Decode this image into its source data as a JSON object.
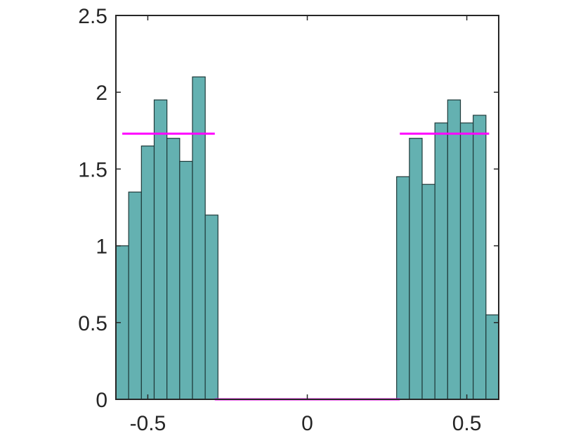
{
  "chart_data": {
    "type": "bar",
    "xlim": [
      -0.6,
      0.6
    ],
    "ylim": [
      0,
      2.5
    ],
    "xticks": [
      -0.5,
      0,
      0.5
    ],
    "xtick_labels": [
      "-0.5",
      "0",
      "0.5"
    ],
    "yticks": [
      0,
      0.5,
      1,
      1.5,
      2,
      2.5
    ],
    "ytick_labels": [
      "0",
      "0.5",
      "1",
      "1.5",
      "2",
      "2.5"
    ],
    "grid": false,
    "bin_width": 0.04,
    "bars": [
      {
        "x0": -0.6,
        "x1": -0.56,
        "value": 1.0
      },
      {
        "x0": -0.56,
        "x1": -0.52,
        "value": 1.35
      },
      {
        "x0": -0.52,
        "x1": -0.48,
        "value": 1.65
      },
      {
        "x0": -0.48,
        "x1": -0.44,
        "value": 1.95
      },
      {
        "x0": -0.44,
        "x1": -0.4,
        "value": 1.7
      },
      {
        "x0": -0.4,
        "x1": -0.36,
        "value": 1.55
      },
      {
        "x0": -0.36,
        "x1": -0.32,
        "value": 2.1
      },
      {
        "x0": -0.32,
        "x1": -0.28,
        "value": 1.2
      },
      {
        "x0": 0.28,
        "x1": 0.32,
        "value": 1.45
      },
      {
        "x0": 0.32,
        "x1": 0.36,
        "value": 1.7
      },
      {
        "x0": 0.36,
        "x1": 0.4,
        "value": 1.4
      },
      {
        "x0": 0.4,
        "x1": 0.44,
        "value": 1.8
      },
      {
        "x0": 0.44,
        "x1": 0.48,
        "value": 1.95
      },
      {
        "x0": 0.48,
        "x1": 0.52,
        "value": 1.8
      },
      {
        "x0": 0.52,
        "x1": 0.56,
        "value": 1.85
      },
      {
        "x0": 0.56,
        "x1": 0.6,
        "value": 0.55
      }
    ],
    "reference_lines": [
      {
        "x": [
          -0.58,
          -0.29
        ],
        "y": 1.73
      },
      {
        "x": [
          -0.29,
          0.29
        ],
        "y": 0
      },
      {
        "x": [
          0.29,
          0.57
        ],
        "y": 1.73
      }
    ],
    "colors": {
      "bar_fill": "#64b1b1",
      "bar_edge": "#1f3a3a",
      "reference_line": "#ff00ff",
      "axis": "#262626"
    }
  }
}
